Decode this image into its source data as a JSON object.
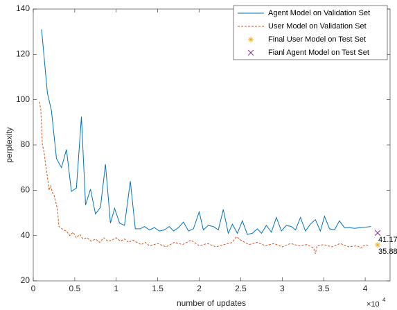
{
  "chart_data": {
    "type": "line",
    "xlabel": "number of updates",
    "ylabel": "perplexity",
    "x_multiplier": {
      "base": "×10",
      "exponent": "4"
    },
    "xlim": [
      0,
      4.3
    ],
    "ylim": [
      20,
      140
    ],
    "xticks": [
      0,
      0.5,
      1,
      1.5,
      2,
      2.5,
      3,
      3.5,
      4
    ],
    "yticks": [
      20,
      40,
      60,
      80,
      100,
      120,
      140
    ],
    "legend": "top-right",
    "series": [
      {
        "name": "Agent Model on Validation Set",
        "type": "line",
        "style": "solid",
        "color": "#0072bd",
        "x": [
          0.1,
          0.17,
          0.22,
          0.28,
          0.34,
          0.4,
          0.46,
          0.52,
          0.58,
          0.63,
          0.69,
          0.75,
          0.81,
          0.87,
          0.93,
          0.98,
          1.04,
          1.1,
          1.17,
          1.23,
          1.29,
          1.34,
          1.4,
          1.46,
          1.52,
          1.58,
          1.64,
          1.69,
          1.75,
          1.81,
          1.87,
          1.93,
          2.0,
          2.05,
          2.11,
          2.17,
          2.23,
          2.29,
          2.35,
          2.4,
          2.46,
          2.52,
          2.58,
          2.64,
          2.7,
          2.75,
          2.81,
          2.87,
          2.93,
          2.99,
          3.05,
          3.11,
          3.16,
          3.22,
          3.28,
          3.34,
          3.4,
          3.46,
          3.51,
          3.57,
          3.63,
          3.69,
          3.75,
          3.81,
          3.87,
          3.94,
          4.0,
          4.07
        ],
        "values": [
          131,
          103,
          95,
          74,
          70,
          78,
          59.5,
          61,
          92.5,
          53.5,
          60.5,
          49.5,
          52.5,
          71.5,
          45.5,
          52,
          45.5,
          44.5,
          64,
          43,
          43,
          44,
          42.5,
          43.5,
          42,
          42.5,
          44,
          42,
          43.5,
          46,
          42,
          43,
          50.5,
          42.5,
          44.5,
          44,
          42.5,
          51.5,
          41,
          45,
          41,
          46.5,
          40.5,
          41,
          43,
          41,
          44.5,
          41.5,
          48,
          42,
          44.5,
          44,
          42.5,
          48,
          42,
          45,
          47,
          42,
          48.5,
          43,
          42.5,
          46.5,
          43.5,
          43.5,
          43.2,
          43.5,
          43.7,
          44
        ]
      },
      {
        "name": "User Model on Validation Set",
        "type": "line",
        "style": "dashed",
        "color": "#d95319",
        "x": [
          0.07,
          0.09,
          0.11,
          0.13,
          0.15,
          0.17,
          0.19,
          0.21,
          0.23,
          0.25,
          0.27,
          0.29,
          0.31,
          0.33,
          0.36,
          0.4,
          0.44,
          0.48,
          0.52,
          0.56,
          0.6,
          0.65,
          0.7,
          0.75,
          0.8,
          0.85,
          0.9,
          0.95,
          1.0,
          1.05,
          1.1,
          1.15,
          1.2,
          1.25,
          1.3,
          1.35,
          1.4,
          1.5,
          1.6,
          1.7,
          1.8,
          1.9,
          2.0,
          2.1,
          2.2,
          2.3,
          2.4,
          2.45,
          2.5,
          2.6,
          2.7,
          2.8,
          2.9,
          3.0,
          3.1,
          3.2,
          3.3,
          3.38,
          3.4,
          3.42,
          3.5,
          3.6,
          3.7,
          3.8,
          3.9,
          3.95,
          4.0,
          4.05
        ],
        "values": [
          99,
          96,
          80,
          77,
          71,
          66,
          60,
          62,
          59,
          58,
          55,
          52,
          44,
          43.5,
          42.5,
          42,
          40,
          41.5,
          39,
          40.5,
          38.5,
          39,
          37.5,
          38.5,
          37,
          39,
          37.5,
          38,
          39,
          37.5,
          38.5,
          37,
          38,
          37,
          36,
          37,
          35.5,
          36.5,
          35,
          37,
          36,
          38,
          35.5,
          36.5,
          35,
          36,
          37,
          39.5,
          38,
          36,
          37,
          35.5,
          36.5,
          35,
          36.5,
          35.5,
          36,
          34.5,
          32,
          35.5,
          36,
          35,
          36.5,
          35,
          35.5,
          34.5,
          36,
          35.5
        ]
      },
      {
        "name": "Final User Model on Test Set",
        "type": "scatter",
        "marker": "star",
        "color": "#edb120",
        "labels": true,
        "x": [
          4.15
        ],
        "values": [
          35.88
        ]
      },
      {
        "name": "Fianl Agent Model on Test Set",
        "type": "scatter",
        "marker": "x",
        "color": "#7e2f8e",
        "labels": true,
        "x": [
          4.15
        ],
        "values": [
          41.17
        ]
      }
    ]
  }
}
